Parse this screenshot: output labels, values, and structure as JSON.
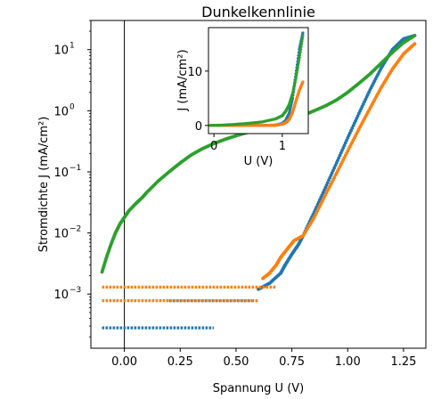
{
  "chart_data": [
    {
      "type": "scatter",
      "title": "Dunkelkennlinie",
      "xlabel": "Spannung U (V)",
      "ylabel": "Stromdichte J (mA/cm²)",
      "xlim": [
        -0.15,
        1.35
      ],
      "ylim": [
        0.00013,
        30
      ],
      "yscale": "log",
      "grid": false,
      "vline_x": 0.0,
      "x_ticks": [
        "0.00",
        "0.25",
        "0.50",
        "0.75",
        "1.00",
        "1.25"
      ],
      "x_tick_values": [
        0.0,
        0.25,
        0.5,
        0.75,
        1.0,
        1.25
      ],
      "y_tick_values": [
        0.001,
        0.01,
        0.1,
        1,
        10
      ],
      "y_tick_labels": [
        {
          "base": "10",
          "exp": "−3"
        },
        {
          "base": "10",
          "exp": "−2"
        },
        {
          "base": "10",
          "exp": "−1"
        },
        {
          "base": "10",
          "exp": "0"
        },
        {
          "base": "10",
          "exp": "1"
        }
      ],
      "series": [
        {
          "color": "#1f77b4",
          "segments": [
            {
              "x0": -0.1,
              "x1": 0.4,
              "y": 0.00028
            },
            {
              "x0": 0.2,
              "x1": 0.58,
              "y": 0.00078
            }
          ],
          "points": [
            [
              0.6,
              0.0012
            ],
            [
              0.65,
              0.0015
            ],
            [
              0.7,
              0.0022
            ],
            [
              0.72,
              0.003
            ],
            [
              0.75,
              0.0045
            ],
            [
              0.78,
              0.0065
            ],
            [
              0.8,
              0.009
            ],
            [
              0.85,
              0.022
            ],
            [
              0.9,
              0.055
            ],
            [
              0.95,
              0.14
            ],
            [
              1.0,
              0.36
            ],
            [
              1.05,
              0.9
            ],
            [
              1.1,
              2.2
            ],
            [
              1.15,
              5.0
            ],
            [
              1.2,
              10
            ],
            [
              1.25,
              15
            ],
            [
              1.3,
              17
            ]
          ]
        },
        {
          "color": "#ff7f0e",
          "segments": [
            {
              "x0": -0.1,
              "x1": 0.6,
              "y": 0.00078
            },
            {
              "x0": -0.1,
              "x1": 0.68,
              "y": 0.0013
            }
          ],
          "points": [
            [
              0.62,
              0.0018
            ],
            [
              0.65,
              0.0022
            ],
            [
              0.68,
              0.003
            ],
            [
              0.7,
              0.004
            ],
            [
              0.73,
              0.0055
            ],
            [
              0.76,
              0.0075
            ],
            [
              0.8,
              0.009
            ],
            [
              0.85,
              0.018
            ],
            [
              0.9,
              0.042
            ],
            [
              0.95,
              0.095
            ],
            [
              1.0,
              0.22
            ],
            [
              1.05,
              0.5
            ],
            [
              1.1,
              1.1
            ],
            [
              1.15,
              2.4
            ],
            [
              1.2,
              4.8
            ],
            [
              1.25,
              8.5
            ],
            [
              1.3,
              12.5
            ]
          ]
        },
        {
          "color": "#2ca02c",
          "segments": [],
          "points": [
            [
              -0.1,
              0.0023
            ],
            [
              -0.08,
              0.004
            ],
            [
              -0.06,
              0.0065
            ],
            [
              -0.04,
              0.01
            ],
            [
              -0.02,
              0.014
            ],
            [
              0.0,
              0.018
            ],
            [
              0.02,
              0.023
            ],
            [
              0.05,
              0.03
            ],
            [
              0.08,
              0.038
            ],
            [
              0.1,
              0.046
            ],
            [
              0.15,
              0.07
            ],
            [
              0.2,
              0.1
            ],
            [
              0.25,
              0.14
            ],
            [
              0.3,
              0.19
            ],
            [
              0.35,
              0.24
            ],
            [
              0.4,
              0.29
            ],
            [
              0.45,
              0.34
            ],
            [
              0.5,
              0.39
            ],
            [
              0.55,
              0.44
            ],
            [
              0.6,
              0.5
            ],
            [
              0.65,
              0.57
            ],
            [
              0.7,
              0.64
            ],
            [
              0.75,
              0.73
            ],
            [
              0.8,
              0.84
            ],
            [
              0.85,
              1.0
            ],
            [
              0.9,
              1.2
            ],
            [
              0.95,
              1.5
            ],
            [
              1.0,
              2.0
            ],
            [
              1.05,
              2.8
            ],
            [
              1.1,
              4.0
            ],
            [
              1.15,
              6.0
            ],
            [
              1.2,
              9.0
            ],
            [
              1.25,
              13
            ],
            [
              1.3,
              17
            ]
          ]
        }
      ]
    },
    {
      "type": "scatter",
      "title": "",
      "xlabel": "U (V)",
      "ylabel": "J (mA/cm²)",
      "xlim": [
        -0.08,
        1.38
      ],
      "ylim": [
        -1.5,
        18
      ],
      "yscale": "linear",
      "grid": false,
      "x_ticks": [
        "0",
        "1"
      ],
      "x_tick_values": [
        0,
        1
      ],
      "y_ticks": [
        "0",
        "10"
      ],
      "y_tick_values": [
        0,
        10
      ],
      "series": [
        {
          "color": "#1f77b4",
          "points": [
            [
              -0.05,
              0
            ],
            [
              0.2,
              0
            ],
            [
              0.4,
              0
            ],
            [
              0.6,
              0
            ],
            [
              0.8,
              0.02
            ],
            [
              0.9,
              0.06
            ],
            [
              1.0,
              0.36
            ],
            [
              1.05,
              0.9
            ],
            [
              1.1,
              2.2
            ],
            [
              1.15,
              5.0
            ],
            [
              1.2,
              9.5
            ],
            [
              1.25,
              14
            ],
            [
              1.3,
              17
            ]
          ]
        },
        {
          "color": "#ff7f0e",
          "points": [
            [
              -0.05,
              0
            ],
            [
              0.2,
              0
            ],
            [
              0.4,
              0
            ],
            [
              0.6,
              0
            ],
            [
              0.8,
              0.01
            ],
            [
              0.9,
              0.04
            ],
            [
              1.0,
              0.22
            ],
            [
              1.05,
              0.5
            ],
            [
              1.1,
              1.1
            ],
            [
              1.15,
              2.4
            ],
            [
              1.2,
              4.5
            ],
            [
              1.25,
              6.5
            ],
            [
              1.3,
              8
            ]
          ]
        },
        {
          "color": "#2ca02c",
          "points": [
            [
              -0.05,
              0
            ],
            [
              0.1,
              0.05
            ],
            [
              0.3,
              0.19
            ],
            [
              0.5,
              0.39
            ],
            [
              0.7,
              0.64
            ],
            [
              0.9,
              1.2
            ],
            [
              1.0,
              1.8
            ],
            [
              1.05,
              2.6
            ],
            [
              1.1,
              3.8
            ],
            [
              1.15,
              5.8
            ],
            [
              1.2,
              8.8
            ],
            [
              1.25,
              12.5
            ],
            [
              1.3,
              16.5
            ]
          ]
        }
      ]
    }
  ]
}
